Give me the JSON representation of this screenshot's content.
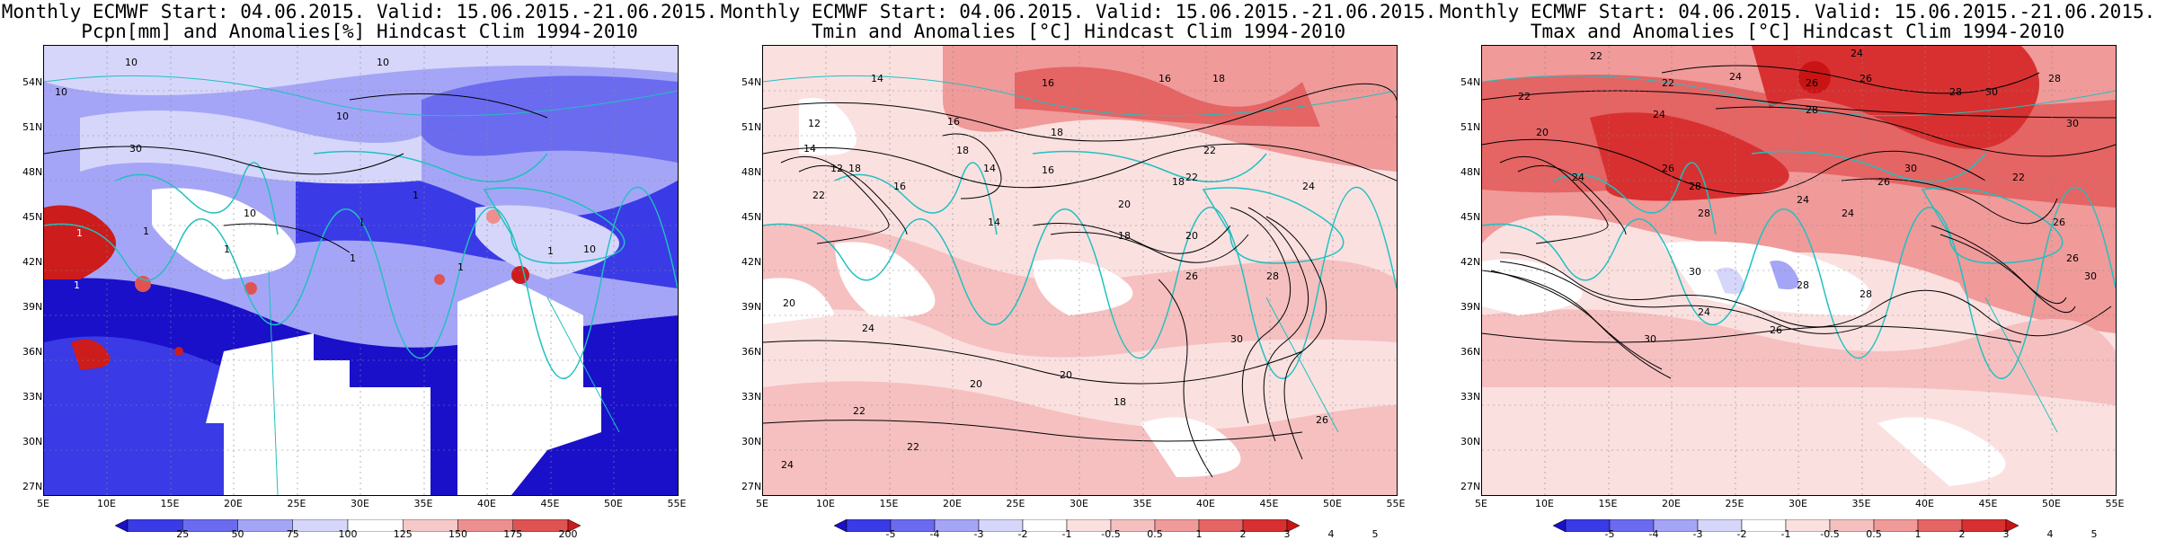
{
  "panels": [
    {
      "title1": "Monthly ECMWF Start: 04.06.2015. Valid: 15.06.2015.-21.06.2015.",
      "title2": "Pcpn[mm] and Anomalies[%] Hindcast Clim 1994-2010",
      "map_type": "precipitation-anomaly",
      "colorbar": {
        "labels": [
          "25",
          "50",
          "75",
          "100",
          "125",
          "150",
          "175",
          "200"
        ],
        "colors": [
          "#1a10c9",
          "#3a3ae6",
          "#6b6bf0",
          "#a5a5f7",
          "#d6d6fb",
          "#ffffff",
          "#f6c9c9",
          "#ee8f8f",
          "#e05353",
          "#cc1c1c"
        ]
      },
      "contour_labels": [
        "10",
        "10",
        "10",
        "10",
        "10",
        "1",
        "1",
        "1",
        "30",
        "10",
        "1",
        "1",
        "1",
        "1",
        "1",
        "1",
        "1",
        "1",
        "1",
        "1",
        "1"
      ]
    },
    {
      "title1": "Monthly ECMWF Start: 04.06.2015. Valid: 15.06.2015.-21.06.2015.",
      "title2": "Tmin and Anomalies [°C] Hindcast Clim 1994-2010",
      "map_type": "tmin-anomaly",
      "colorbar": {
        "labels": [
          "-5",
          "-4",
          "-3",
          "-2",
          "-1",
          "-0.5",
          "0.5",
          "1",
          "2",
          "3",
          "4",
          "5"
        ],
        "colors": [
          "#1a10c9",
          "#3a3ae6",
          "#6b6bf0",
          "#a5a5f7",
          "#d6d6fb",
          "#ffffff",
          "#fbe0e0",
          "#f6c0c0",
          "#f09a9a",
          "#e56464",
          "#d83030",
          "#c91414"
        ]
      },
      "contour_labels": [
        "14",
        "16",
        "16",
        "18",
        "12",
        "14",
        "16",
        "18",
        "18",
        "16",
        "18",
        "14",
        "16",
        "12",
        "22",
        "14",
        "20",
        "18",
        "20",
        "22",
        "18",
        "24",
        "22",
        "24",
        "20",
        "26",
        "28",
        "30",
        "26",
        "18",
        "20",
        "22",
        "20",
        "22",
        "24"
      ]
    },
    {
      "title1": "Monthly ECMWF Start: 04.06.2015. Valid: 15.06.2015.-21.06.2015.",
      "title2": "Tmax and Anomalies [°C] Hindcast Clim 1994-2010",
      "map_type": "tmax-anomaly",
      "colorbar": {
        "labels": [
          "-5",
          "-4",
          "-3",
          "-2",
          "-1",
          "-0.5",
          "0.5",
          "1",
          "2",
          "3",
          "4",
          "5"
        ],
        "colors": [
          "#1a10c9",
          "#3a3ae6",
          "#6b6bf0",
          "#a5a5f7",
          "#d6d6fb",
          "#ffffff",
          "#fbe0e0",
          "#f6c0c0",
          "#f09a9a",
          "#e56464",
          "#d83030",
          "#c91414"
        ]
      },
      "contour_labels": [
        "22",
        "24",
        "24",
        "26",
        "22",
        "28",
        "28",
        "30",
        "22",
        "24",
        "26",
        "28",
        "30",
        "20",
        "24",
        "26",
        "28",
        "30",
        "26",
        "24",
        "22",
        "26",
        "28",
        "24",
        "30",
        "28",
        "26",
        "30",
        "24",
        "30",
        "26",
        "28"
      ]
    }
  ],
  "lat_ticks": [
    "54N",
    "51N",
    "48N",
    "45N",
    "42N",
    "39N",
    "36N",
    "33N",
    "30N",
    "27N"
  ],
  "lon_ticks": [
    "5E",
    "10E",
    "15E",
    "20E",
    "25E",
    "30E",
    "35E",
    "40E",
    "45E",
    "50E",
    "55E"
  ]
}
